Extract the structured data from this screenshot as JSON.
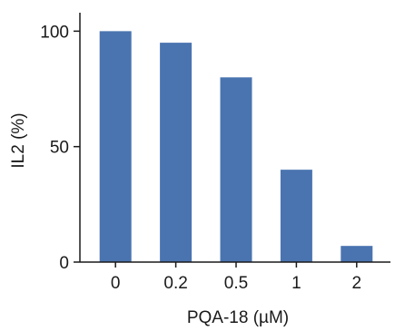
{
  "chart_data": {
    "type": "bar",
    "categories": [
      "0",
      "0.2",
      "0.5",
      "1",
      "2"
    ],
    "values": [
      100,
      95,
      80,
      40,
      7
    ],
    "xlabel": "PQA-18 (µM)",
    "ylabel": "IL2 (%)",
    "ylim": [
      0,
      108
    ],
    "yticks": [
      0,
      50,
      100
    ],
    "grid": false,
    "bar_color": "#4a74b0"
  }
}
